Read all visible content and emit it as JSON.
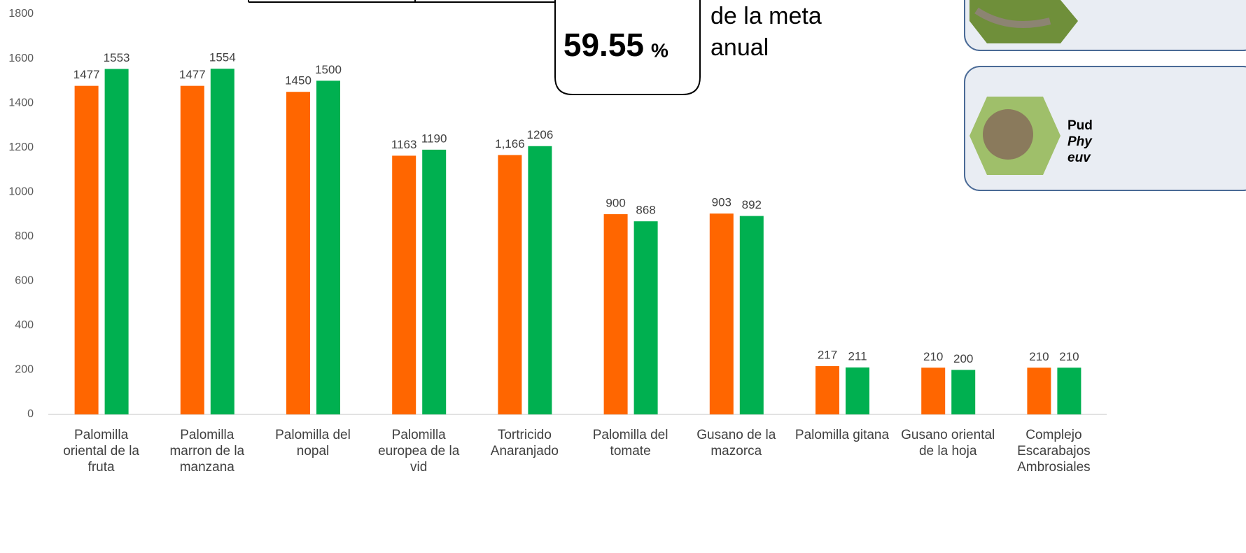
{
  "chart_data": {
    "type": "bar",
    "categories": [
      "Palomilla oriental de la fruta",
      "Palomilla marron de la manzana",
      "Palomilla del nopal",
      "Palomilla europea de la vid",
      "Tortricido Anaranjado",
      "Palomilla del tomate",
      "Gusano de la mazorca",
      "Palomilla gitana",
      "Gusano oriental de la hoja",
      "Complejo Escarabajos Ambrosiales"
    ],
    "series": [
      {
        "color": "#ff6600",
        "values": [
          1477,
          1477,
          1450,
          1163,
          1166,
          900,
          903,
          217,
          210,
          210
        ],
        "value_labels": [
          "1477",
          "1477",
          "1450",
          "1163",
          "1,166",
          "900",
          "903",
          "217",
          "210",
          "210"
        ]
      },
      {
        "color": "#00b050",
        "values": [
          1553,
          1554,
          1500,
          1190,
          1206,
          868,
          892,
          211,
          200,
          210
        ]
      }
    ],
    "ylim": [
      0,
      1800
    ],
    "yticks": [
      0,
      200,
      400,
      600,
      800,
      1000,
      1200,
      1400,
      1600,
      1800
    ],
    "grid": false,
    "annotations": {
      "percent": "59.55",
      "percent_sign": "%",
      "goal_text": [
        "de la meta",
        "anual"
      ],
      "panel_text": [
        "Pud",
        "Phy",
        "euv"
      ]
    }
  }
}
